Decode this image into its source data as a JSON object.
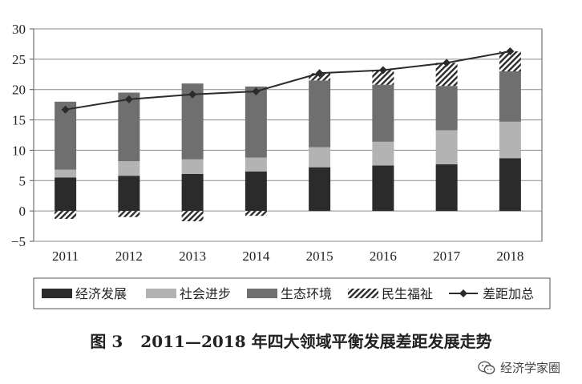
{
  "chart_data": {
    "type": "bar",
    "stacked": true,
    "categories": [
      "2011",
      "2012",
      "2013",
      "2014",
      "2015",
      "2016",
      "2017",
      "2018"
    ],
    "series": [
      {
        "name": "经济发展",
        "color": "#2b2b2b",
        "pattern": "solid",
        "values": [
          5.5,
          5.8,
          6.1,
          6.5,
          7.2,
          7.5,
          7.7,
          8.7
        ]
      },
      {
        "name": "社会进步",
        "color": "#b3b3b3",
        "pattern": "solid",
        "values": [
          1.3,
          2.4,
          2.4,
          2.3,
          3.3,
          3.9,
          5.6,
          6.0
        ]
      },
      {
        "name": "生态环境",
        "color": "#6f6f6f",
        "pattern": "solid",
        "values": [
          11.2,
          11.3,
          12.5,
          11.7,
          11.0,
          9.4,
          7.3,
          8.3
        ]
      },
      {
        "name": "民生福祉",
        "color": "#2b2b2b",
        "pattern": "hatched",
        "values": [
          -1.3,
          -1.0,
          -1.7,
          -0.8,
          1.2,
          2.4,
          3.8,
          3.3
        ]
      },
      {
        "name": "差距加总",
        "color": "#2b2b2b",
        "type": "line",
        "marker": "diamond",
        "values": [
          16.7,
          18.4,
          19.2,
          19.7,
          22.7,
          23.2,
          24.4,
          26.3
        ]
      }
    ],
    "ylim": [
      -5,
      30
    ],
    "yticks": [
      -5,
      0,
      5,
      10,
      15,
      20,
      25,
      30
    ],
    "grid": true,
    "legend": "bottom",
    "title": "",
    "xlabel": "",
    "ylabel": ""
  },
  "caption": {
    "figure_no": "图 3",
    "text": "2011—2018 年四大领域平衡发展差距发展走势"
  },
  "watermark": {
    "icon": "wechat-icon",
    "text": "经济学家圈"
  }
}
